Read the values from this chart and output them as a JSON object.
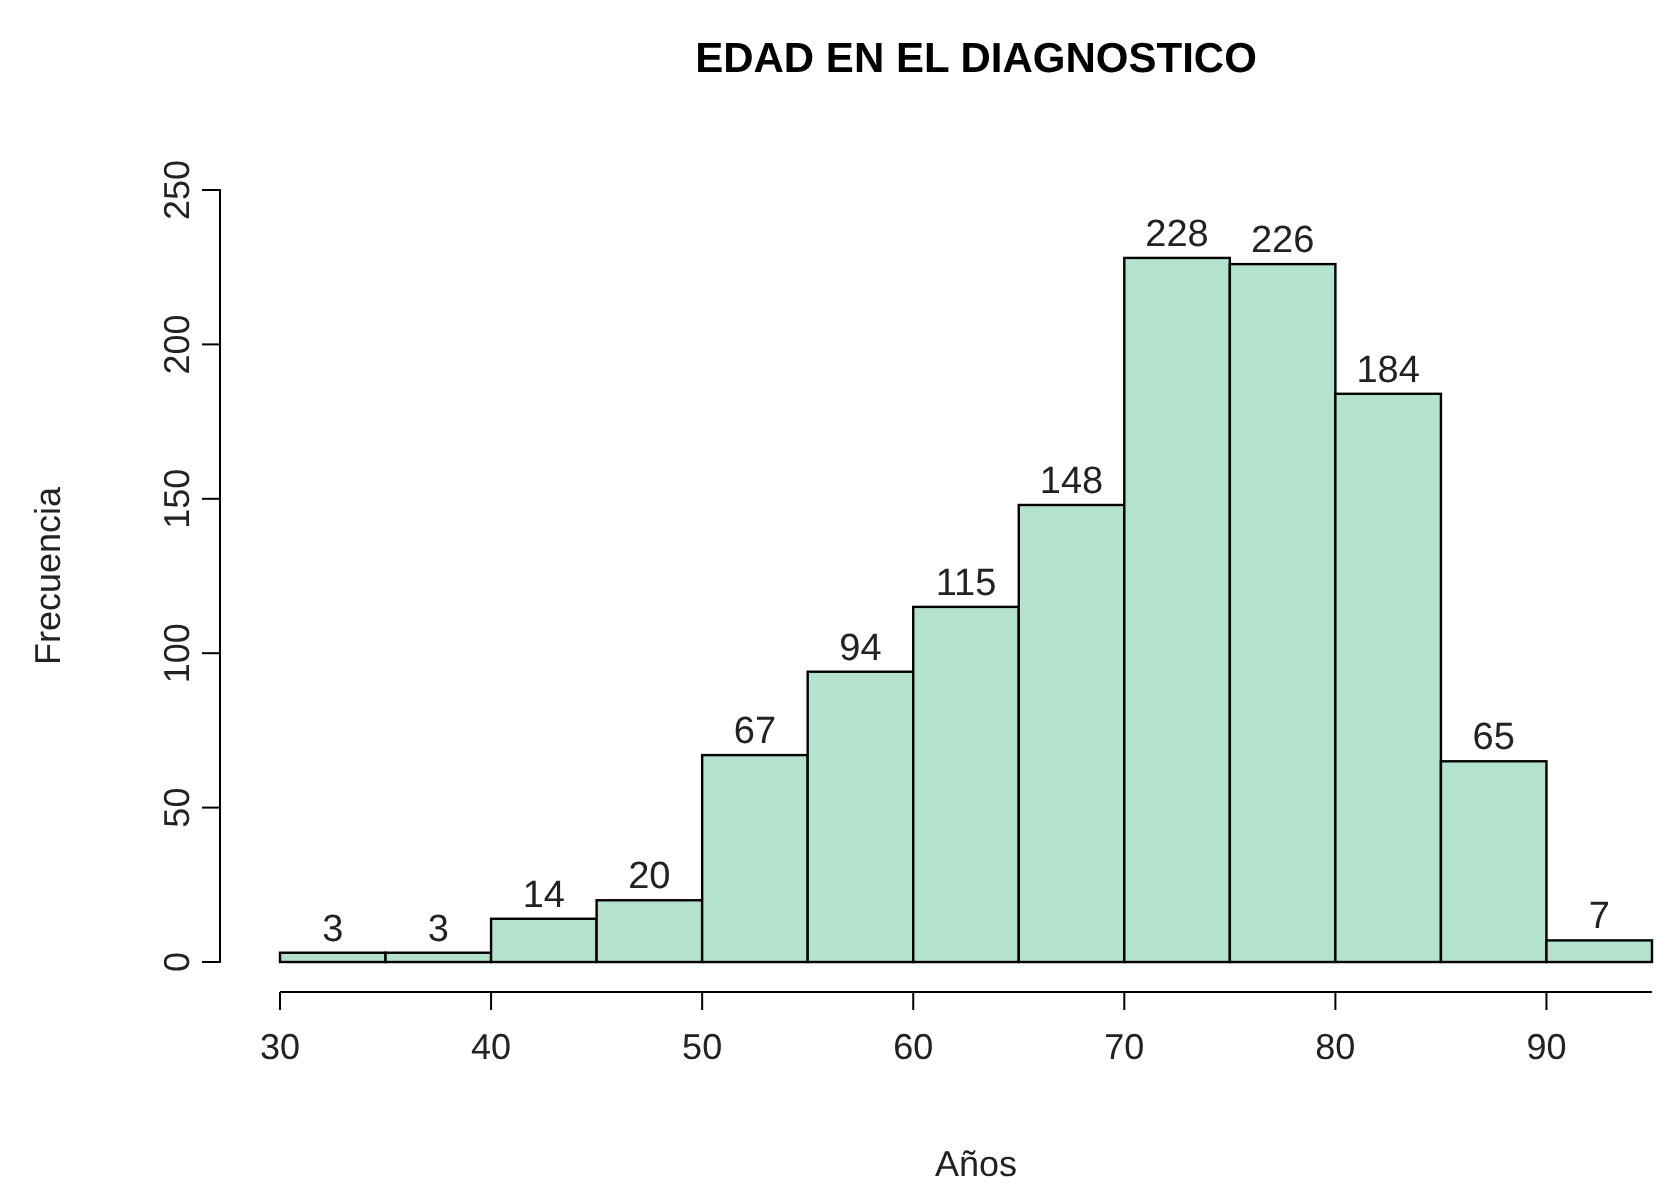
{
  "chart_data": {
    "type": "histogram",
    "title": "EDAD EN EL DIAGNOSTICO",
    "xlabel": "Años",
    "ylabel": "Frecuencia",
    "bins": [
      30,
      35,
      40,
      45,
      50,
      55,
      60,
      65,
      70,
      75,
      80,
      85,
      90,
      95
    ],
    "values": [
      3,
      3,
      14,
      20,
      67,
      94,
      115,
      148,
      228,
      226,
      184,
      65,
      7
    ],
    "color": "#b3e2cd",
    "data_labels": true,
    "xlim": [
      30,
      95
    ],
    "xticks": [
      30,
      40,
      50,
      60,
      70,
      80,
      90
    ],
    "ylim": [
      0,
      250
    ],
    "yticks": [
      0,
      50,
      100,
      150,
      200,
      250
    ],
    "grid": false
  }
}
